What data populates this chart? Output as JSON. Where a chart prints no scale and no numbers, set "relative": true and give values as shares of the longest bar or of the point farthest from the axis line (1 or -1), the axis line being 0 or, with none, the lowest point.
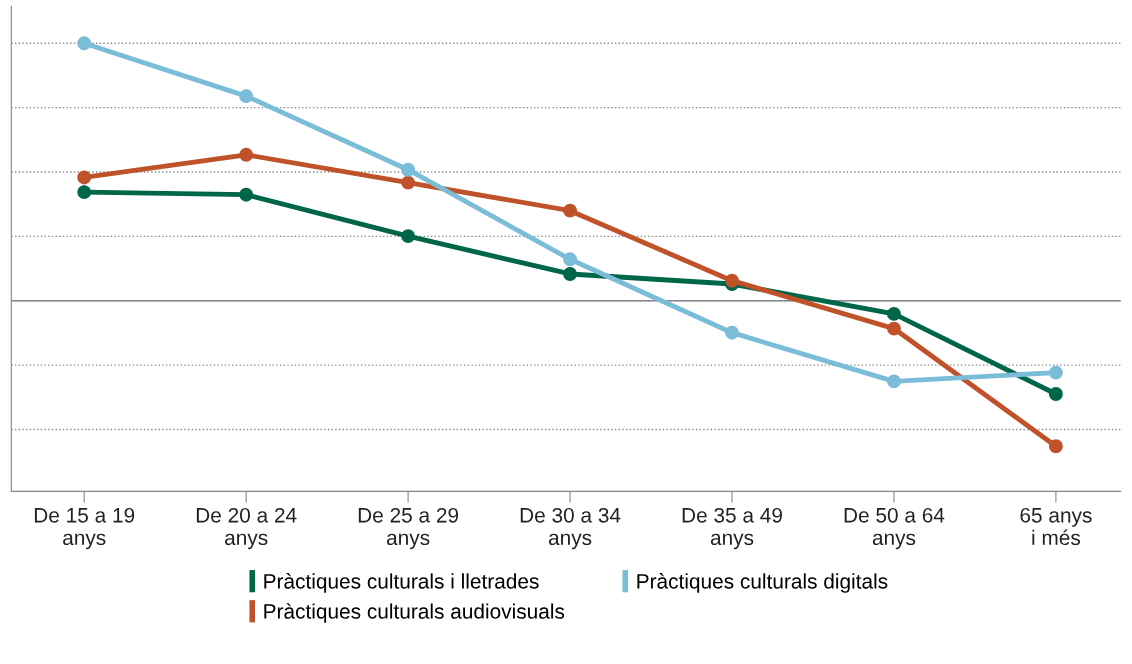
{
  "chart_data": {
    "type": "line",
    "relative": true,
    "grid": "y",
    "legend": "bottom",
    "marker": "circle",
    "line_style": "solid",
    "categories": [
      "De 15 a 19\nanys",
      "De 20 a 24\nanys",
      "De 25 a 29\nanys",
      "De 30 a 34\nanys",
      "De 35 a 49\nanys",
      "De 50 a 64\nanys",
      "65 anys\ni més"
    ],
    "series": [
      {
        "name": "Pràctiques culturals i lletrades",
        "color": "#00664a",
        "values": [
          0.422,
          0.412,
          0.251,
          0.104,
          0.065,
          -0.051,
          -0.362
        ]
      },
      {
        "name": "Pràctiques culturals audiovisuals",
        "color": "#c0522a",
        "values": [
          0.479,
          0.567,
          0.459,
          0.35,
          0.078,
          -0.108,
          -0.565
        ]
      },
      {
        "name": "Pràctiques culturals digitals",
        "color": "#7bbcd9",
        "values": [
          1,
          0.795,
          0.509,
          0.161,
          -0.124,
          -0.313,
          -0.279
        ]
      }
    ]
  }
}
